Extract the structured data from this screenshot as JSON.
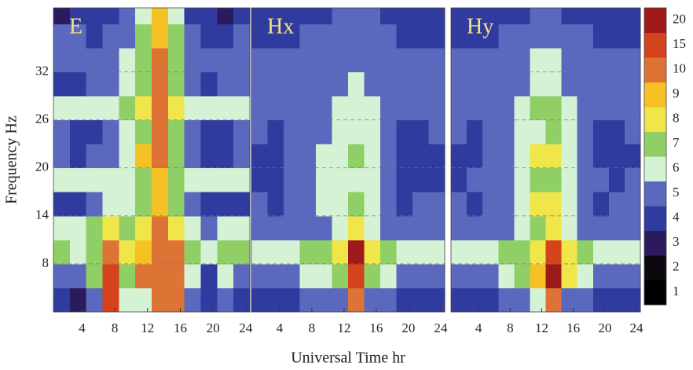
{
  "chart_data": [
    {
      "type": "heatmap",
      "title": "E",
      "ylabel": "Frequency  Hz",
      "xbins": [
        0.5,
        2.5,
        4.5,
        6.5,
        8.5,
        10.5,
        12.5,
        14.5,
        16.5,
        18.5,
        20.5,
        22.5,
        24.5
      ],
      "ybins": [
        2,
        5,
        8,
        11,
        14,
        17,
        20,
        23,
        26,
        29,
        32,
        35,
        38,
        40
      ],
      "xlim": [
        0.5,
        24.5
      ],
      "ylim": [
        2,
        40
      ],
      "xticks": [
        4,
        8,
        12,
        16,
        20,
        24
      ],
      "yticks": [
        8,
        14,
        20,
        26,
        32
      ],
      "z": [
        [
          4,
          3,
          5,
          15,
          6,
          6,
          10,
          10,
          5,
          4,
          5,
          4
        ],
        [
          5,
          5,
          7,
          15,
          7,
          10,
          10,
          10,
          6,
          4,
          6,
          5
        ],
        [
          7,
          6,
          7,
          10,
          8,
          9,
          10,
          10,
          7,
          6,
          7,
          7
        ],
        [
          6,
          6,
          7,
          8,
          7,
          8,
          10,
          8,
          6,
          5,
          6,
          6
        ],
        [
          4,
          4,
          5,
          6,
          6,
          7,
          9,
          7,
          5,
          4,
          4,
          4
        ],
        [
          6,
          6,
          6,
          6,
          6,
          7,
          9,
          7,
          6,
          6,
          6,
          6
        ],
        [
          5,
          4,
          5,
          5,
          6,
          9,
          10,
          7,
          5,
          4,
          4,
          5
        ],
        [
          5,
          4,
          4,
          5,
          6,
          7,
          10,
          7,
          5,
          4,
          4,
          5
        ],
        [
          6,
          6,
          6,
          6,
          7,
          8,
          10,
          8,
          6,
          6,
          6,
          6
        ],
        [
          4,
          4,
          5,
          5,
          6,
          7,
          10,
          7,
          5,
          4,
          5,
          5
        ],
        [
          5,
          5,
          5,
          5,
          6,
          7,
          10,
          7,
          5,
          5,
          5,
          5
        ],
        [
          5,
          5,
          4,
          5,
          5,
          7,
          9,
          7,
          5,
          4,
          4,
          5
        ],
        [
          3,
          4,
          4,
          4,
          5,
          6,
          9,
          6,
          4,
          4,
          3,
          4
        ]
      ]
    },
    {
      "type": "heatmap",
      "title": "Hx",
      "xlabel": "Universal Time  hr",
      "xbins": [
        0.5,
        2.5,
        4.5,
        6.5,
        8.5,
        10.5,
        12.5,
        14.5,
        16.5,
        18.5,
        20.5,
        22.5,
        24.5
      ],
      "ybins": [
        2,
        5,
        8,
        11,
        14,
        17,
        20,
        23,
        26,
        29,
        32,
        35,
        38,
        40
      ],
      "xlim": [
        0.5,
        24.5
      ],
      "ylim": [
        2,
        40
      ],
      "xticks": [
        4,
        8,
        12,
        16,
        20,
        24
      ],
      "yticks": [
        8,
        14,
        20,
        26,
        32
      ],
      "z": [
        [
          4,
          4,
          4,
          5,
          5,
          5,
          10,
          5,
          5,
          4,
          4,
          4
        ],
        [
          5,
          5,
          5,
          6,
          6,
          7,
          15,
          7,
          6,
          5,
          5,
          5
        ],
        [
          6,
          6,
          6,
          7,
          7,
          8,
          20,
          8,
          7,
          6,
          6,
          6
        ],
        [
          5,
          5,
          5,
          5,
          5,
          6,
          8,
          6,
          5,
          5,
          5,
          5
        ],
        [
          5,
          4,
          5,
          5,
          6,
          6,
          7,
          6,
          5,
          4,
          5,
          5
        ],
        [
          4,
          4,
          5,
          5,
          6,
          6,
          6,
          6,
          5,
          4,
          4,
          4
        ],
        [
          4,
          4,
          5,
          5,
          6,
          6,
          7,
          6,
          5,
          4,
          4,
          4
        ],
        [
          5,
          4,
          5,
          5,
          5,
          6,
          6,
          6,
          5,
          4,
          4,
          5
        ],
        [
          5,
          5,
          5,
          5,
          5,
          6,
          6,
          6,
          5,
          5,
          5,
          5
        ],
        [
          5,
          5,
          5,
          5,
          5,
          5,
          6,
          5,
          5,
          5,
          5,
          5
        ],
        [
          5,
          5,
          5,
          5,
          5,
          5,
          5,
          5,
          5,
          5,
          5,
          5
        ],
        [
          4,
          4,
          4,
          5,
          5,
          5,
          5,
          5,
          5,
          4,
          4,
          4
        ],
        [
          4,
          4,
          4,
          4,
          4,
          5,
          5,
          5,
          4,
          4,
          4,
          4
        ]
      ]
    },
    {
      "type": "heatmap",
      "title": "Hy",
      "xbins": [
        0.5,
        2.5,
        4.5,
        6.5,
        8.5,
        10.5,
        12.5,
        14.5,
        16.5,
        18.5,
        20.5,
        22.5,
        24.5
      ],
      "ybins": [
        2,
        5,
        8,
        11,
        14,
        17,
        20,
        23,
        26,
        29,
        32,
        35,
        38,
        40
      ],
      "xlim": [
        0.5,
        24.5
      ],
      "ylim": [
        2,
        40
      ],
      "xticks": [
        4,
        8,
        12,
        16,
        20,
        24
      ],
      "yticks": [
        8,
        14,
        20,
        26,
        32
      ],
      "z": [
        [
          4,
          4,
          4,
          5,
          5,
          6,
          10,
          5,
          5,
          4,
          4,
          4
        ],
        [
          5,
          5,
          5,
          6,
          7,
          9,
          20,
          8,
          6,
          5,
          5,
          5
        ],
        [
          6,
          6,
          6,
          7,
          7,
          8,
          15,
          8,
          7,
          6,
          6,
          6
        ],
        [
          5,
          5,
          5,
          5,
          6,
          7,
          8,
          6,
          5,
          5,
          5,
          5
        ],
        [
          5,
          4,
          5,
          5,
          6,
          8,
          8,
          6,
          5,
          4,
          5,
          5
        ],
        [
          4,
          5,
          5,
          5,
          6,
          7,
          7,
          6,
          5,
          5,
          4,
          5
        ],
        [
          4,
          4,
          5,
          5,
          6,
          8,
          8,
          6,
          5,
          4,
          4,
          4
        ],
        [
          5,
          4,
          5,
          5,
          6,
          6,
          7,
          6,
          5,
          4,
          4,
          5
        ],
        [
          5,
          5,
          5,
          5,
          6,
          7,
          7,
          6,
          5,
          5,
          5,
          5
        ],
        [
          5,
          5,
          5,
          5,
          5,
          6,
          6,
          5,
          5,
          5,
          5,
          5
        ],
        [
          5,
          5,
          5,
          5,
          5,
          6,
          6,
          5,
          5,
          5,
          5,
          5
        ],
        [
          4,
          4,
          4,
          5,
          5,
          5,
          5,
          5,
          5,
          4,
          4,
          4
        ],
        [
          4,
          4,
          4,
          4,
          4,
          5,
          5,
          4,
          4,
          4,
          4,
          4
        ]
      ]
    },
    {
      "type": "colorbar",
      "levels": [
        1,
        2,
        3,
        4,
        5,
        6,
        7,
        8,
        9,
        10,
        15,
        20
      ],
      "colors": [
        "#000000",
        "#0d0710",
        "#2b1a5c",
        "#2f3b9e",
        "#5a68bd",
        "#d6f2d4",
        "#8fcf66",
        "#f0e64a",
        "#f6c125",
        "#dd7436",
        "#d4431c",
        "#9e1a1a"
      ]
    }
  ]
}
